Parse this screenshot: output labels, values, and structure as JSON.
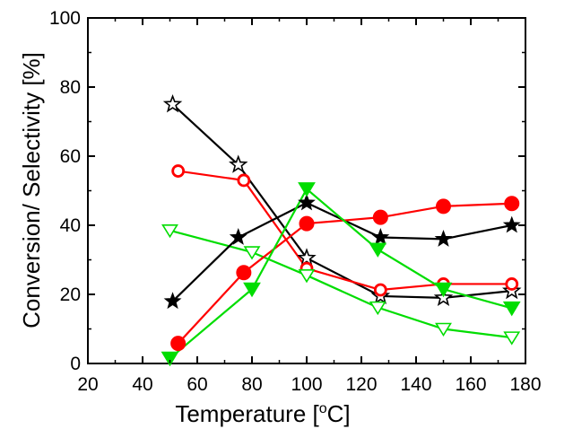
{
  "chart_data": {
    "type": "line",
    "xlabel": "Temperature [",
    "xlabel_sup": "o",
    "xlabel_suffix": "C]",
    "ylabel": "Conversion/ Selectivity [%]",
    "xlim": [
      20,
      180
    ],
    "ylim": [
      0,
      100
    ],
    "xticks": [
      "20",
      "40",
      "60",
      "80",
      "100",
      "120",
      "140",
      "160",
      "180"
    ],
    "yticks": [
      "0",
      "20",
      "40",
      "60",
      "80",
      "100"
    ],
    "grid": false,
    "series": [
      {
        "marker": "open-star",
        "color": "#000000",
        "x": [
          51,
          75,
          100,
          127,
          150,
          175
        ],
        "y": [
          75.0,
          57.5,
          30.5,
          19.5,
          19.0,
          21.0
        ]
      },
      {
        "marker": "open-circle",
        "color": "#ff0000",
        "x": [
          53,
          77,
          100,
          127,
          150,
          175
        ],
        "y": [
          55.7,
          53.0,
          27.5,
          21.3,
          23.0,
          23.0
        ]
      },
      {
        "marker": "open-triangle",
        "color": "#00dd00",
        "x": [
          50,
          80,
          100,
          126,
          150,
          175
        ],
        "y": [
          38.5,
          32.2,
          25.5,
          16.2,
          10.0,
          7.5
        ]
      },
      {
        "marker": "filled-star",
        "color": "#000000",
        "x": [
          51,
          75,
          100,
          127,
          150,
          175
        ],
        "y": [
          18.0,
          36.5,
          46.5,
          36.5,
          36.0,
          40.0
        ]
      },
      {
        "marker": "filled-circle",
        "color": "#ff0000",
        "x": [
          53,
          77,
          100,
          127,
          150,
          175
        ],
        "y": [
          5.8,
          26.3,
          40.5,
          42.3,
          45.5,
          46.3
        ]
      },
      {
        "marker": "filled-triangle",
        "color": "#00dd00",
        "x": [
          50,
          80,
          100,
          126,
          150,
          175
        ],
        "y": [
          1.5,
          21.5,
          50.5,
          33.0,
          21.5,
          16.0
        ]
      }
    ]
  }
}
